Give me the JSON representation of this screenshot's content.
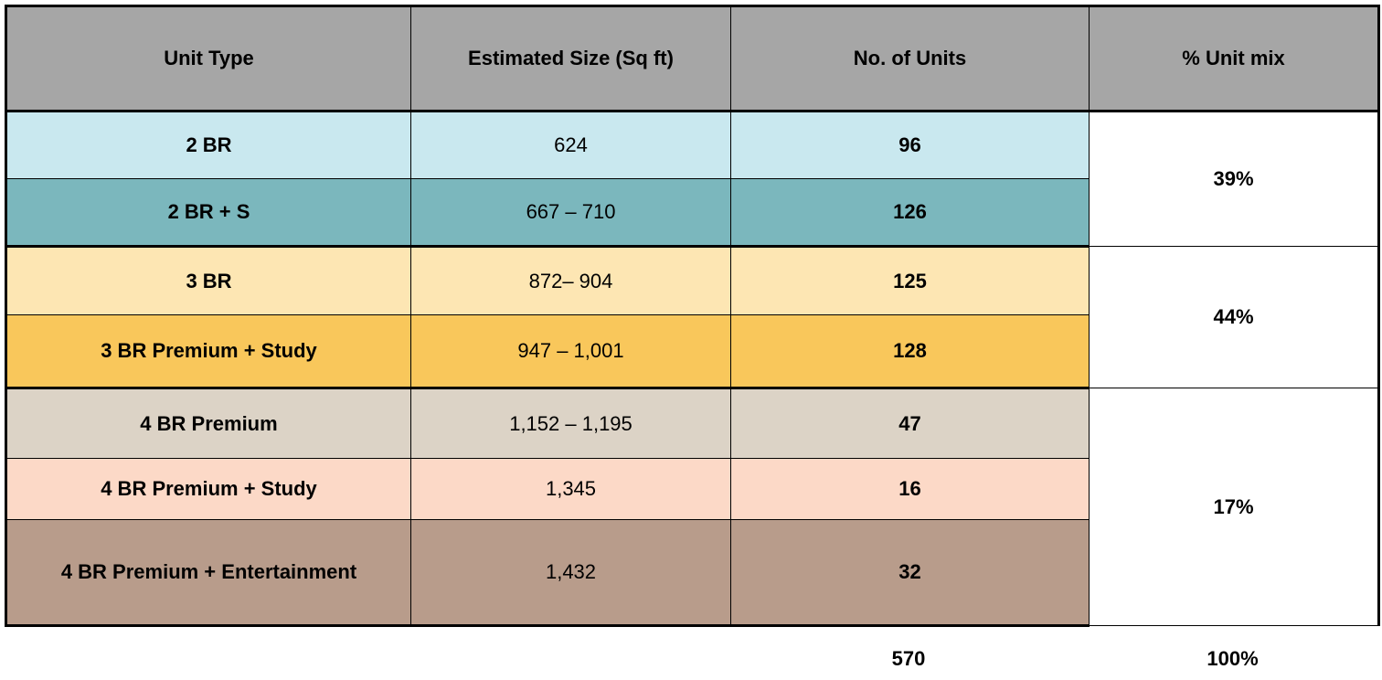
{
  "headers": {
    "unit_type": "Unit Type",
    "size": "Estimated Size (Sq ft)",
    "units": "No. of Units",
    "mix": "% Unit mix"
  },
  "rows": [
    {
      "type": "2 BR",
      "size": "624",
      "units": "96",
      "color": "#c9e8ef"
    },
    {
      "type": "2 BR + S",
      "size": "667 – 710",
      "units": "126",
      "color": "#7bb7bd"
    },
    {
      "type": "3 BR",
      "size": "872– 904",
      "units": "125",
      "color": "#fde6b3"
    },
    {
      "type": "3 BR Premium + Study",
      "size": "947 – 1,001",
      "units": "128",
      "color": "#f9c75b"
    },
    {
      "type": "4 BR Premium",
      "size": "1,152 – 1,195",
      "units": "47",
      "color": "#dcd3c6"
    },
    {
      "type": "4 BR Premium + Study",
      "size": "1,345",
      "units": "16",
      "color": "#fcd9c7"
    },
    {
      "type": "4 BR Premium + Entertainment",
      "size": "1,432",
      "units": "32",
      "color": "#b89c8b"
    }
  ],
  "mix_groups": [
    "39%",
    "44%",
    "17%"
  ],
  "totals": {
    "units": "570",
    "mix": "100%"
  }
}
